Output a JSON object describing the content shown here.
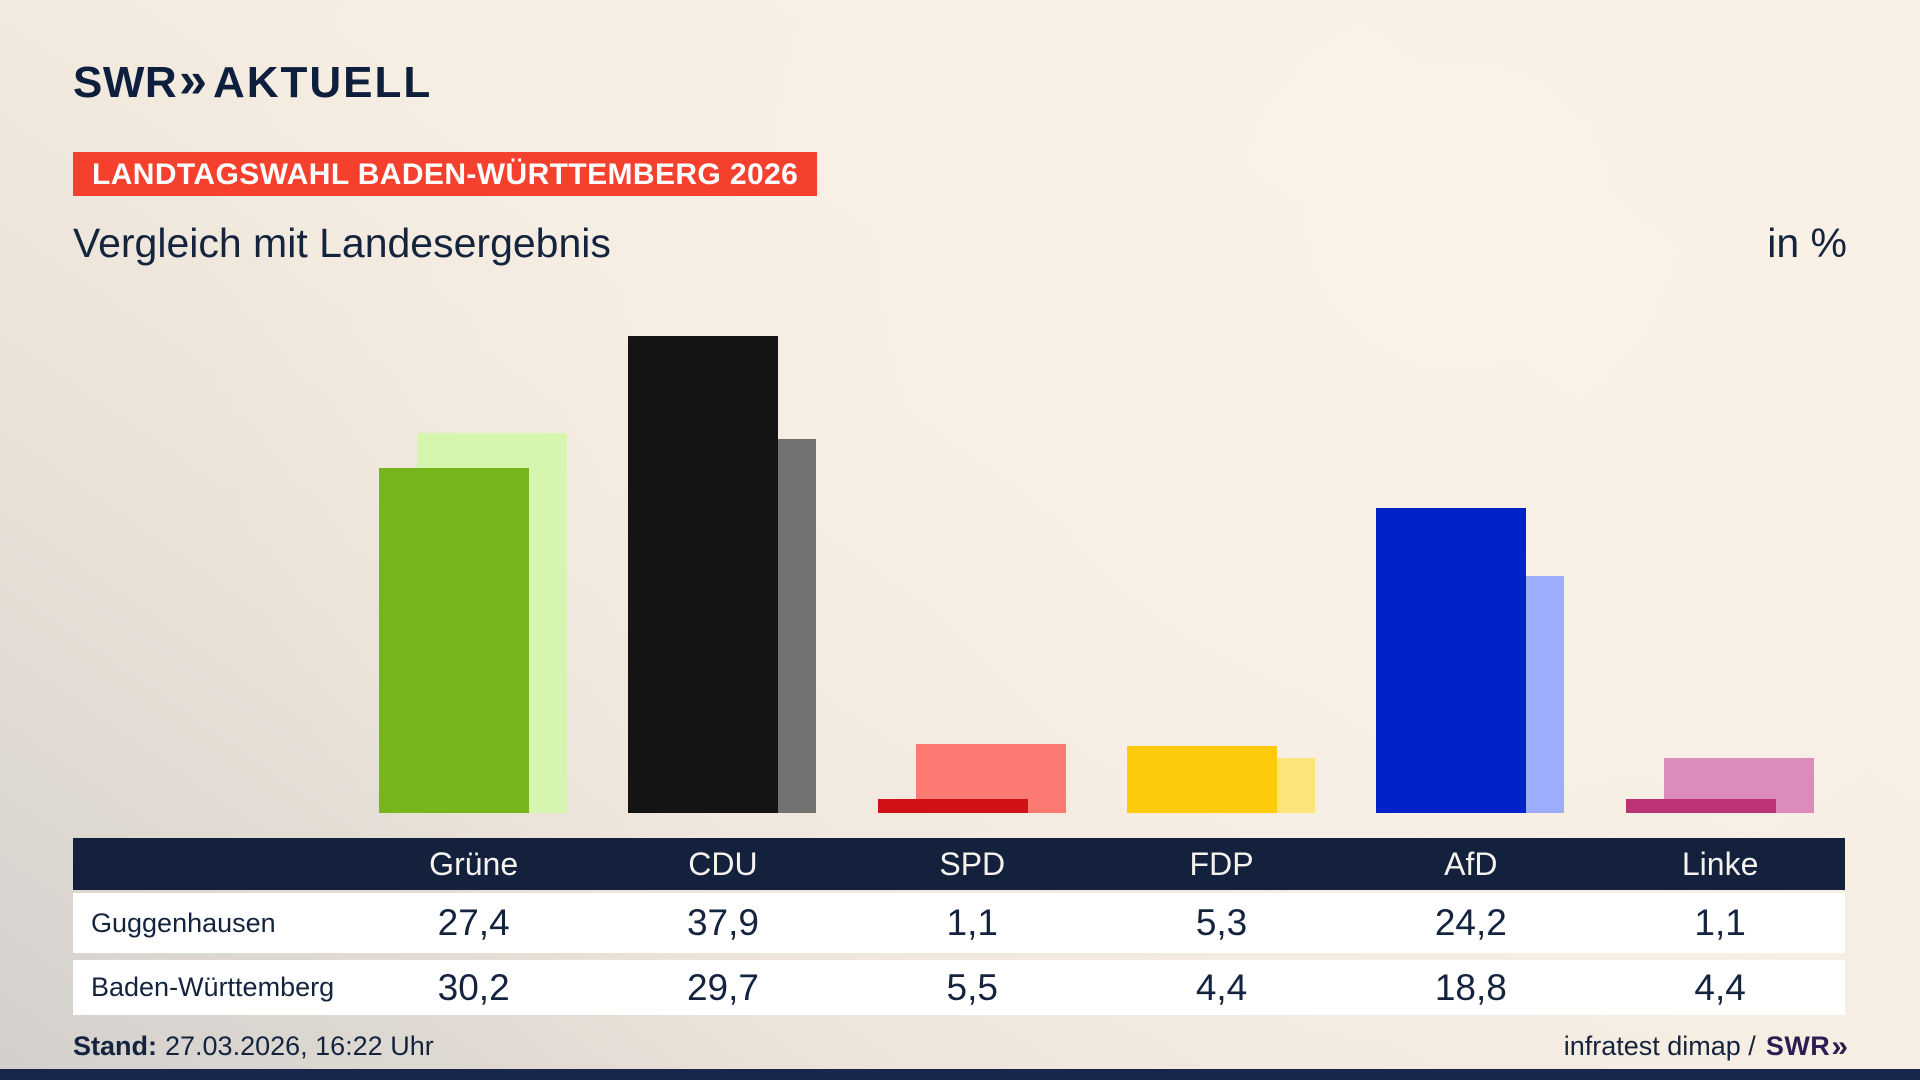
{
  "header": {
    "logo": {
      "brand": "SWR",
      "chevron": "»",
      "suffix": "AKTUELL"
    },
    "banner": "LANDTAGSWAHL BADEN-WÜRTTEMBERG 2026",
    "title": "Vergleich mit Landesergebnis",
    "unit_label": "in %"
  },
  "chart_data": {
    "type": "bar",
    "title": "Vergleich mit Landesergebnis",
    "unit": "in %",
    "categories": [
      "Grüne",
      "CDU",
      "SPD",
      "FDP",
      "AfD",
      "Linke"
    ],
    "series": [
      {
        "name": "Guggenhausen",
        "values": [
          27.4,
          37.9,
          1.1,
          5.3,
          24.2,
          1.1
        ]
      },
      {
        "name": "Baden-Württemberg",
        "values": [
          30.2,
          29.7,
          5.5,
          4.4,
          18.8,
          4.4
        ]
      }
    ],
    "colors": {
      "front": [
        "#77b51d",
        "#141414",
        "#d01217",
        "#fecb0a",
        "#0122c8",
        "#bc3376"
      ],
      "back": [
        "#d6f6b0",
        "#747171",
        "#fb7a72",
        "#fee27a",
        "#9dadfb",
        "#db8cba"
      ]
    },
    "ylim": [
      0,
      40
    ],
    "grid": false,
    "legend_position": "table-below-chart"
  },
  "table": {
    "columns": [
      "Grüne",
      "CDU",
      "SPD",
      "FDP",
      "AfD",
      "Linke"
    ],
    "rows": [
      {
        "label": "Guggenhausen",
        "values": [
          "27,4",
          "37,9",
          "1,1",
          "5,3",
          "24,2",
          "1,1"
        ]
      },
      {
        "label": "Baden-Württemberg",
        "values": [
          "30,2",
          "29,7",
          "5,5",
          "4,4",
          "18,8",
          "4,4"
        ]
      }
    ]
  },
  "footer": {
    "stand_label": "Stand:",
    "stand_value": "27.03.2026, 16:22 Uhr",
    "source": "infratest dimap /",
    "source_brand": "SWR",
    "source_chevron": "»"
  },
  "brand_colors": {
    "navy_text": "#14243e",
    "banner_red": "#f5402e",
    "table_header_navy": "#13213c",
    "footer_brand_violet": "#2e1d52",
    "background_cream": "#f7efe3"
  }
}
